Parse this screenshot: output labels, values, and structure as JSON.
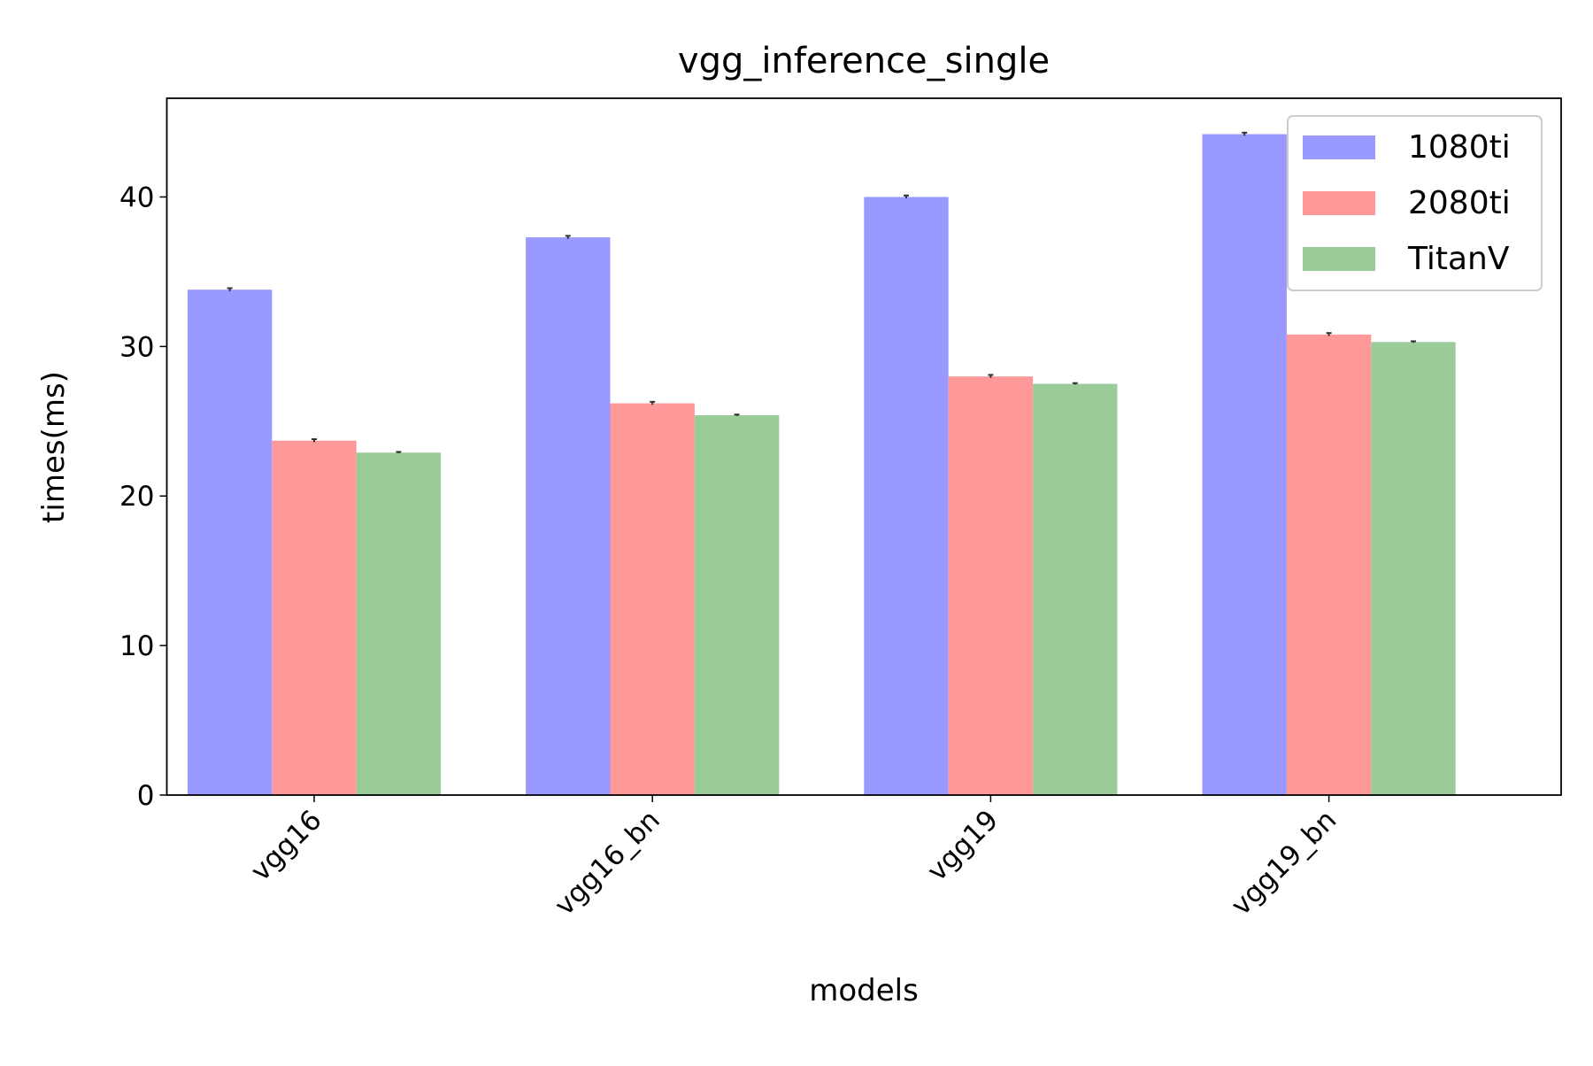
{
  "chart_data": {
    "type": "bar",
    "title": "vgg_inference_single",
    "x_label": "models",
    "y_label": "times(ms)",
    "categories": [
      "vgg16",
      "vgg16_bn",
      "vgg19",
      "vgg19_bn"
    ],
    "series": [
      {
        "name": "1080ti",
        "color": "#9999ff",
        "values": [
          33.8,
          37.3,
          40.0,
          44.2
        ],
        "errors": [
          0.1,
          0.1,
          0.1,
          0.1
        ]
      },
      {
        "name": "2080ti",
        "color": "#ff9999",
        "values": [
          23.7,
          26.2,
          28.0,
          30.8
        ],
        "errors": [
          0.1,
          0.1,
          0.1,
          0.1
        ]
      },
      {
        "name": "TitanV",
        "color": "#99cc99",
        "values": [
          22.9,
          25.4,
          27.5,
          30.3
        ],
        "errors": [
          0.05,
          0.05,
          0.05,
          0.05
        ]
      }
    ],
    "ylim": [
      0,
      46.6
    ],
    "yticks": [
      0,
      10,
      20,
      30,
      40
    ],
    "grid": false,
    "legend": "upper right"
  }
}
